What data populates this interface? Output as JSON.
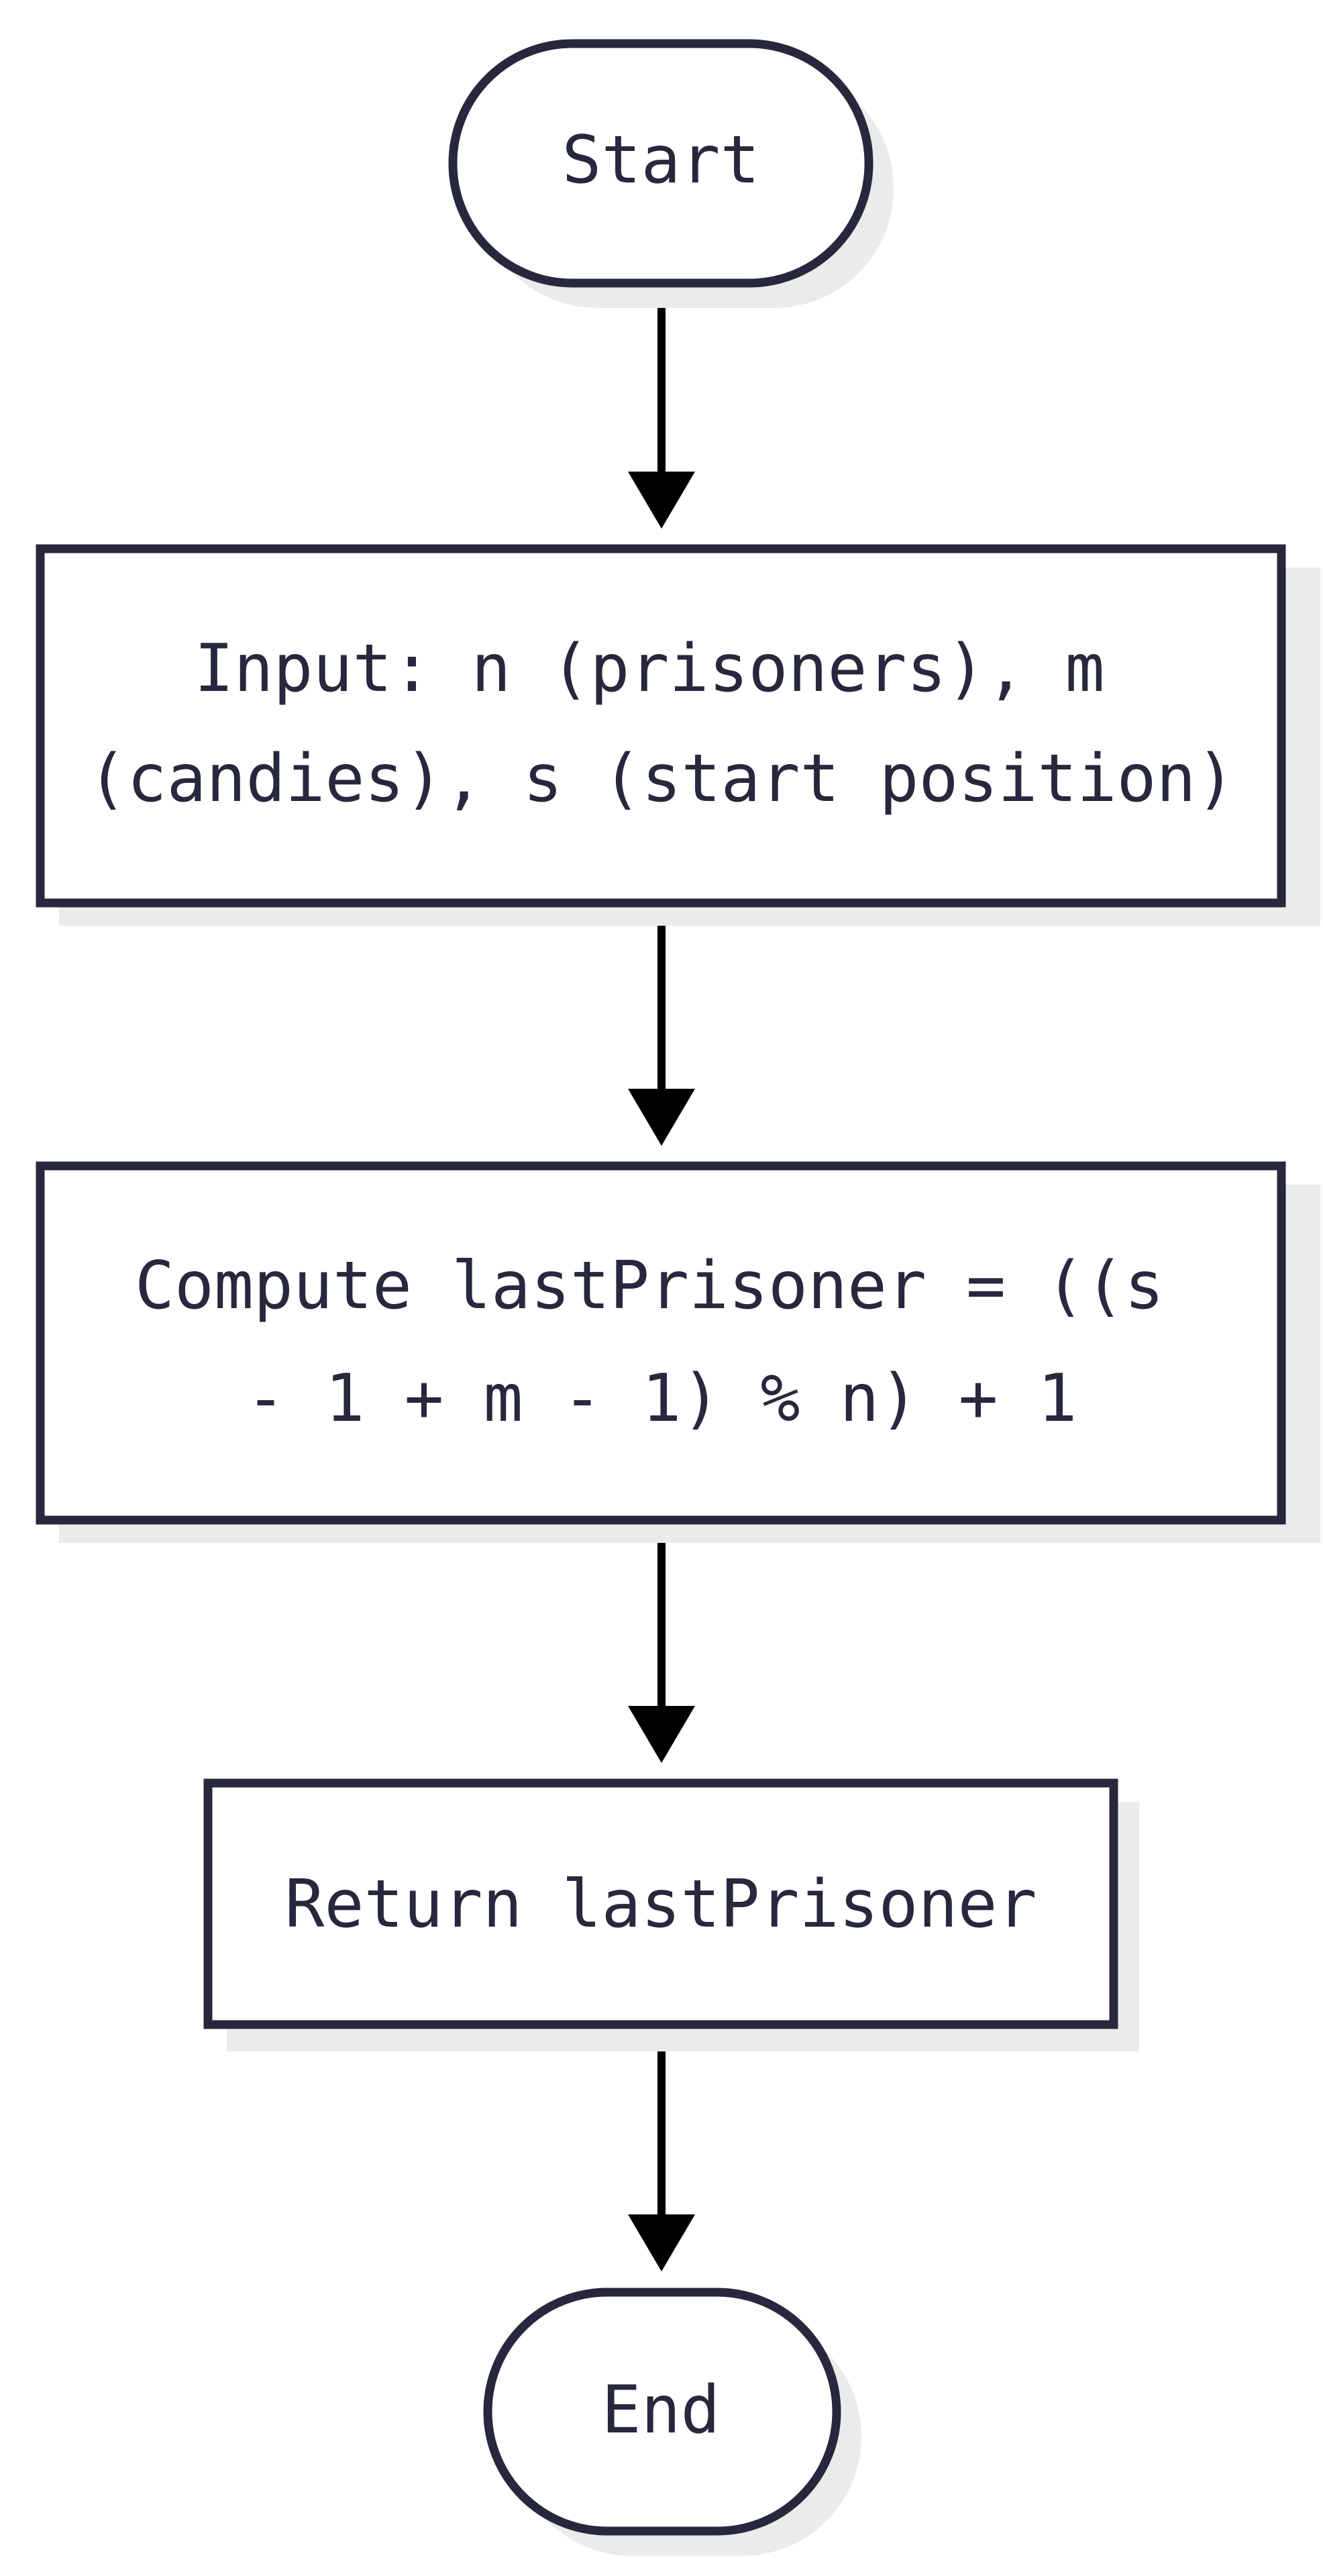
{
  "flowchart": {
    "nodes": [
      {
        "id": "start",
        "shape": "terminal",
        "lines": [
          "Start"
        ]
      },
      {
        "id": "input",
        "shape": "process",
        "lines": [
          "Input: n (prisoners), m",
          "(candies), s (start position)"
        ]
      },
      {
        "id": "compute",
        "shape": "process",
        "lines": [
          "Compute lastPrisoner = ((s",
          "- 1 + m - 1) % n) + 1"
        ]
      },
      {
        "id": "return",
        "shape": "process",
        "lines": [
          "Return lastPrisoner"
        ]
      },
      {
        "id": "end",
        "shape": "terminal",
        "lines": [
          "End"
        ]
      }
    ],
    "edges": [
      {
        "from": "start",
        "to": "input"
      },
      {
        "from": "input",
        "to": "compute"
      },
      {
        "from": "compute",
        "to": "return"
      },
      {
        "from": "return",
        "to": "end"
      }
    ]
  }
}
